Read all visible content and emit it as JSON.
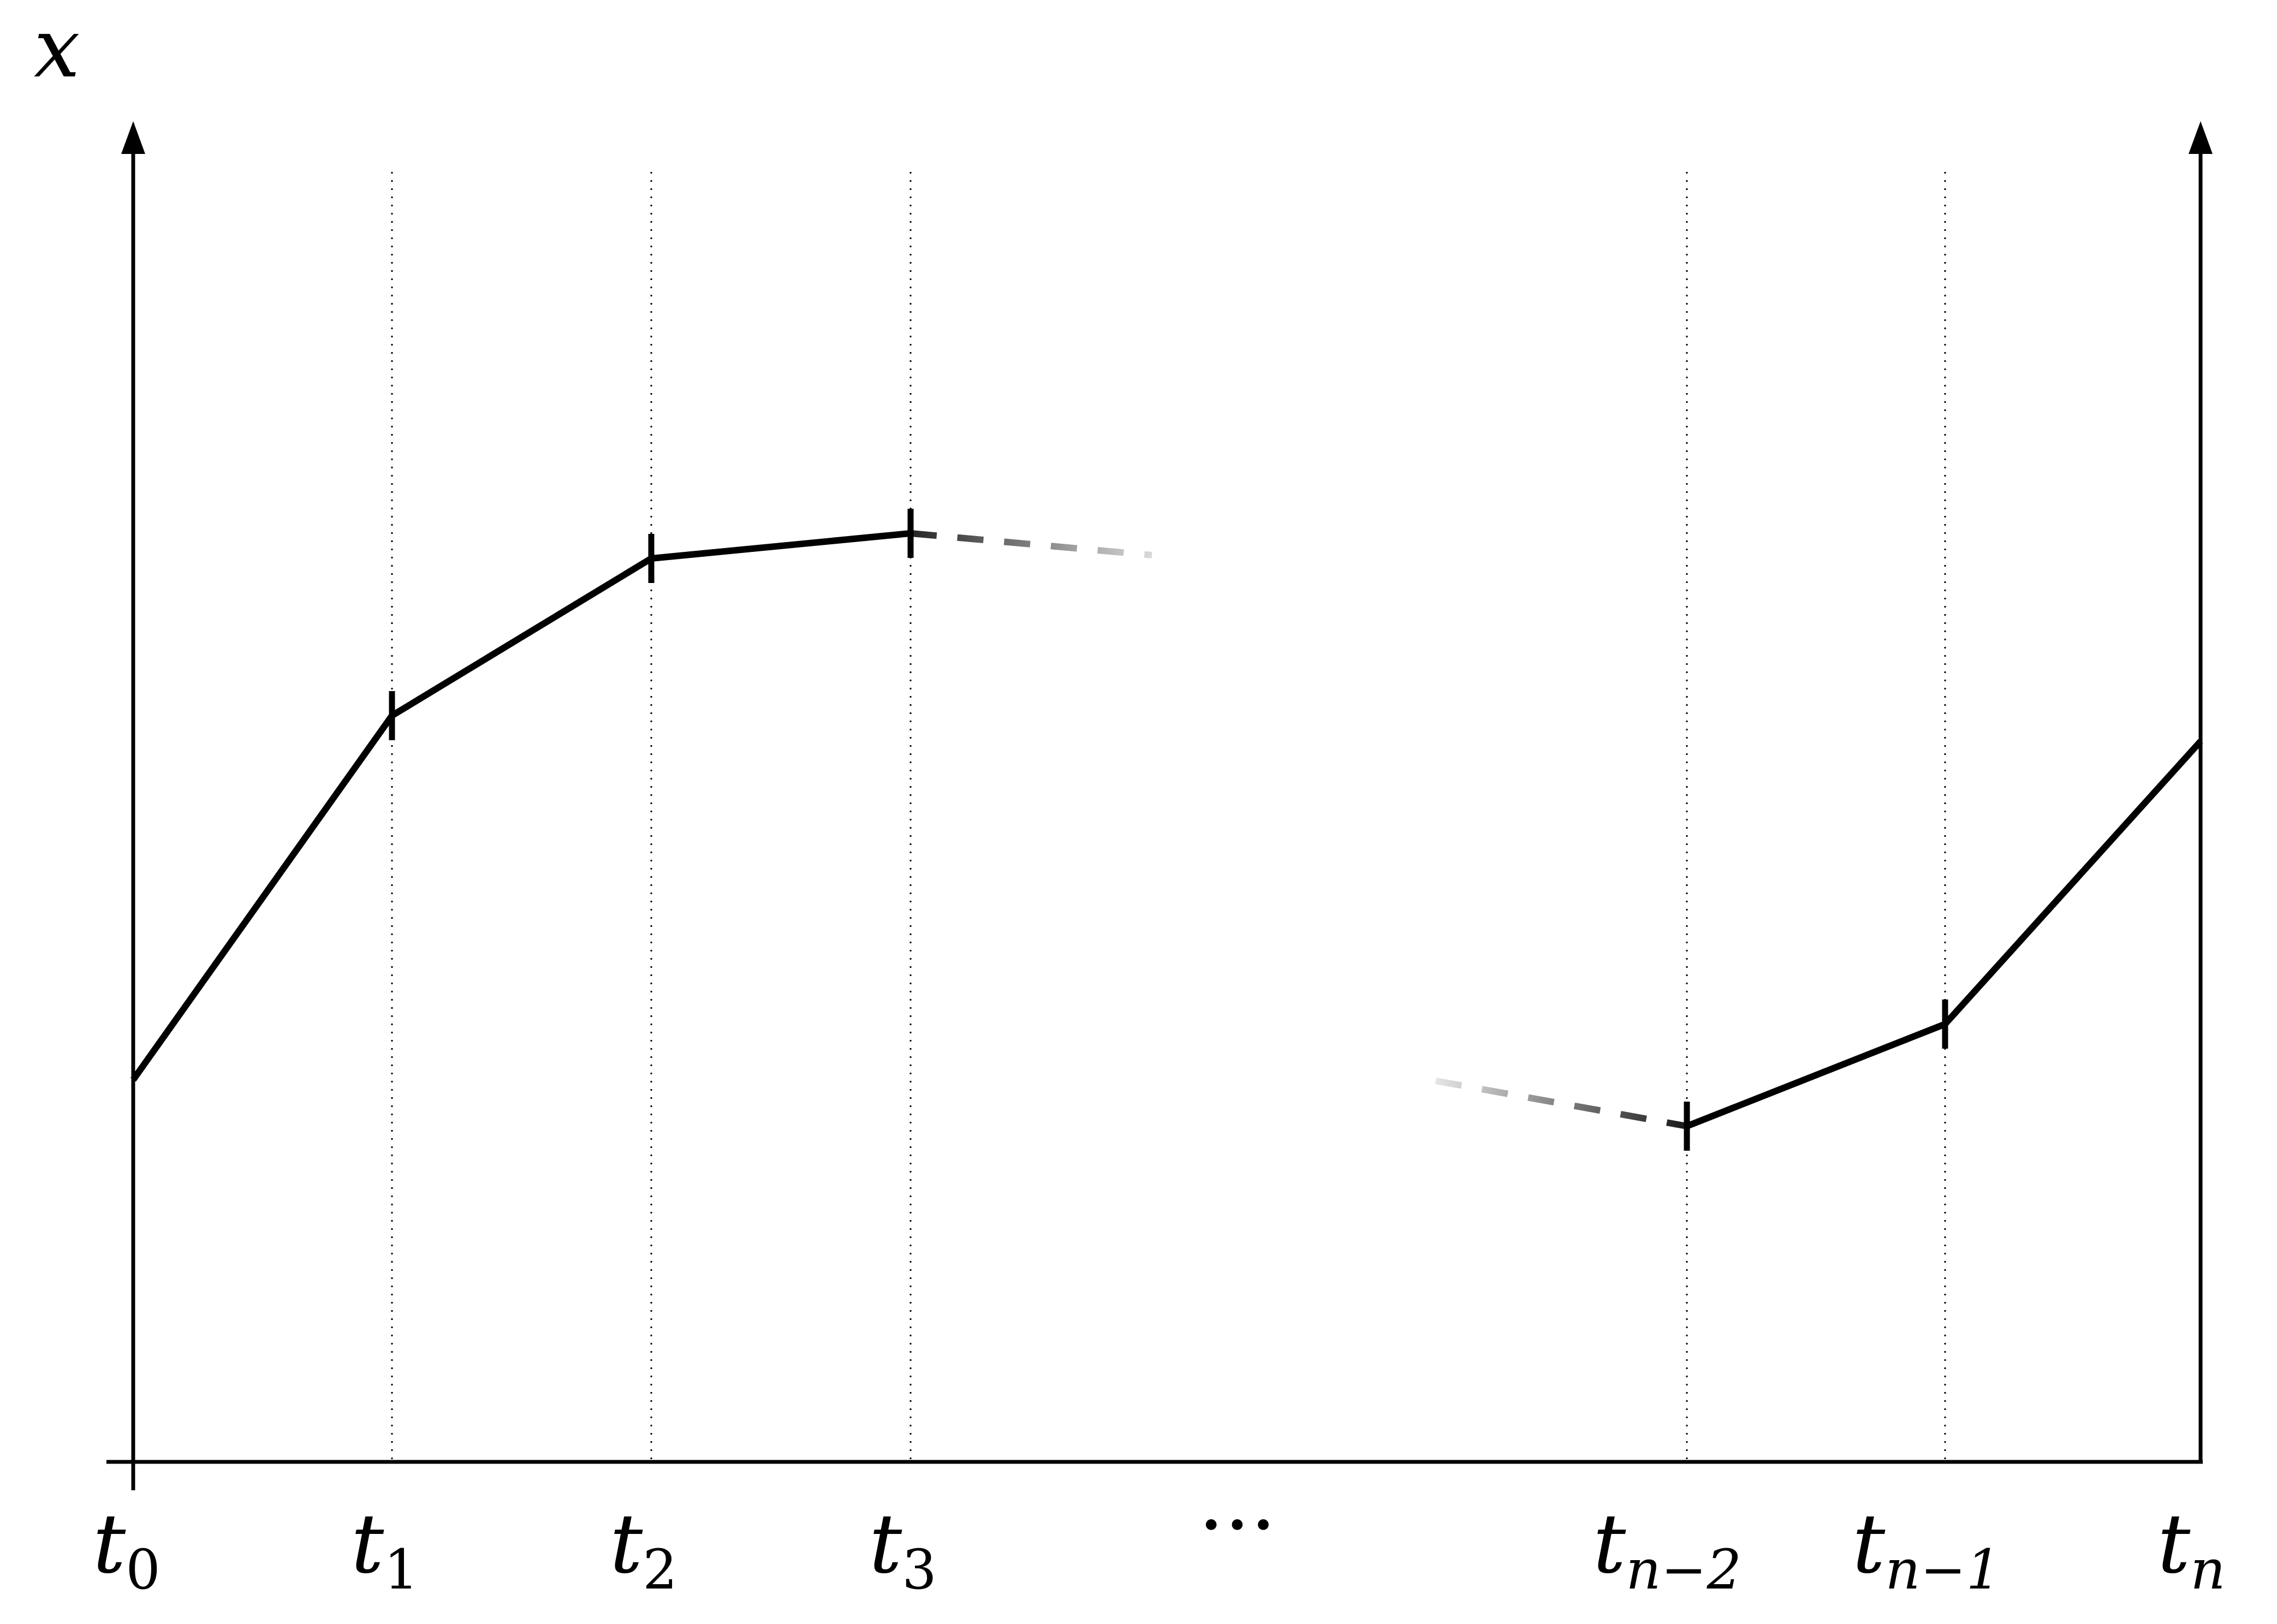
{
  "diagram": {
    "y_axis_label": "x",
    "ellipsis": "···",
    "ticks": [
      {
        "main": "t",
        "sub": "0",
        "sub_italic": false
      },
      {
        "main": "t",
        "sub": "1",
        "sub_italic": false
      },
      {
        "main": "t",
        "sub": "2",
        "sub_italic": false
      },
      {
        "main": "t",
        "sub": "3",
        "sub_italic": false
      },
      {
        "main": "t",
        "sub": "n−2",
        "sub_italic": true
      },
      {
        "main": "t",
        "sub": "n−1",
        "sub_italic": true
      },
      {
        "main": "t",
        "sub": "n",
        "sub_italic": true
      }
    ]
  }
}
